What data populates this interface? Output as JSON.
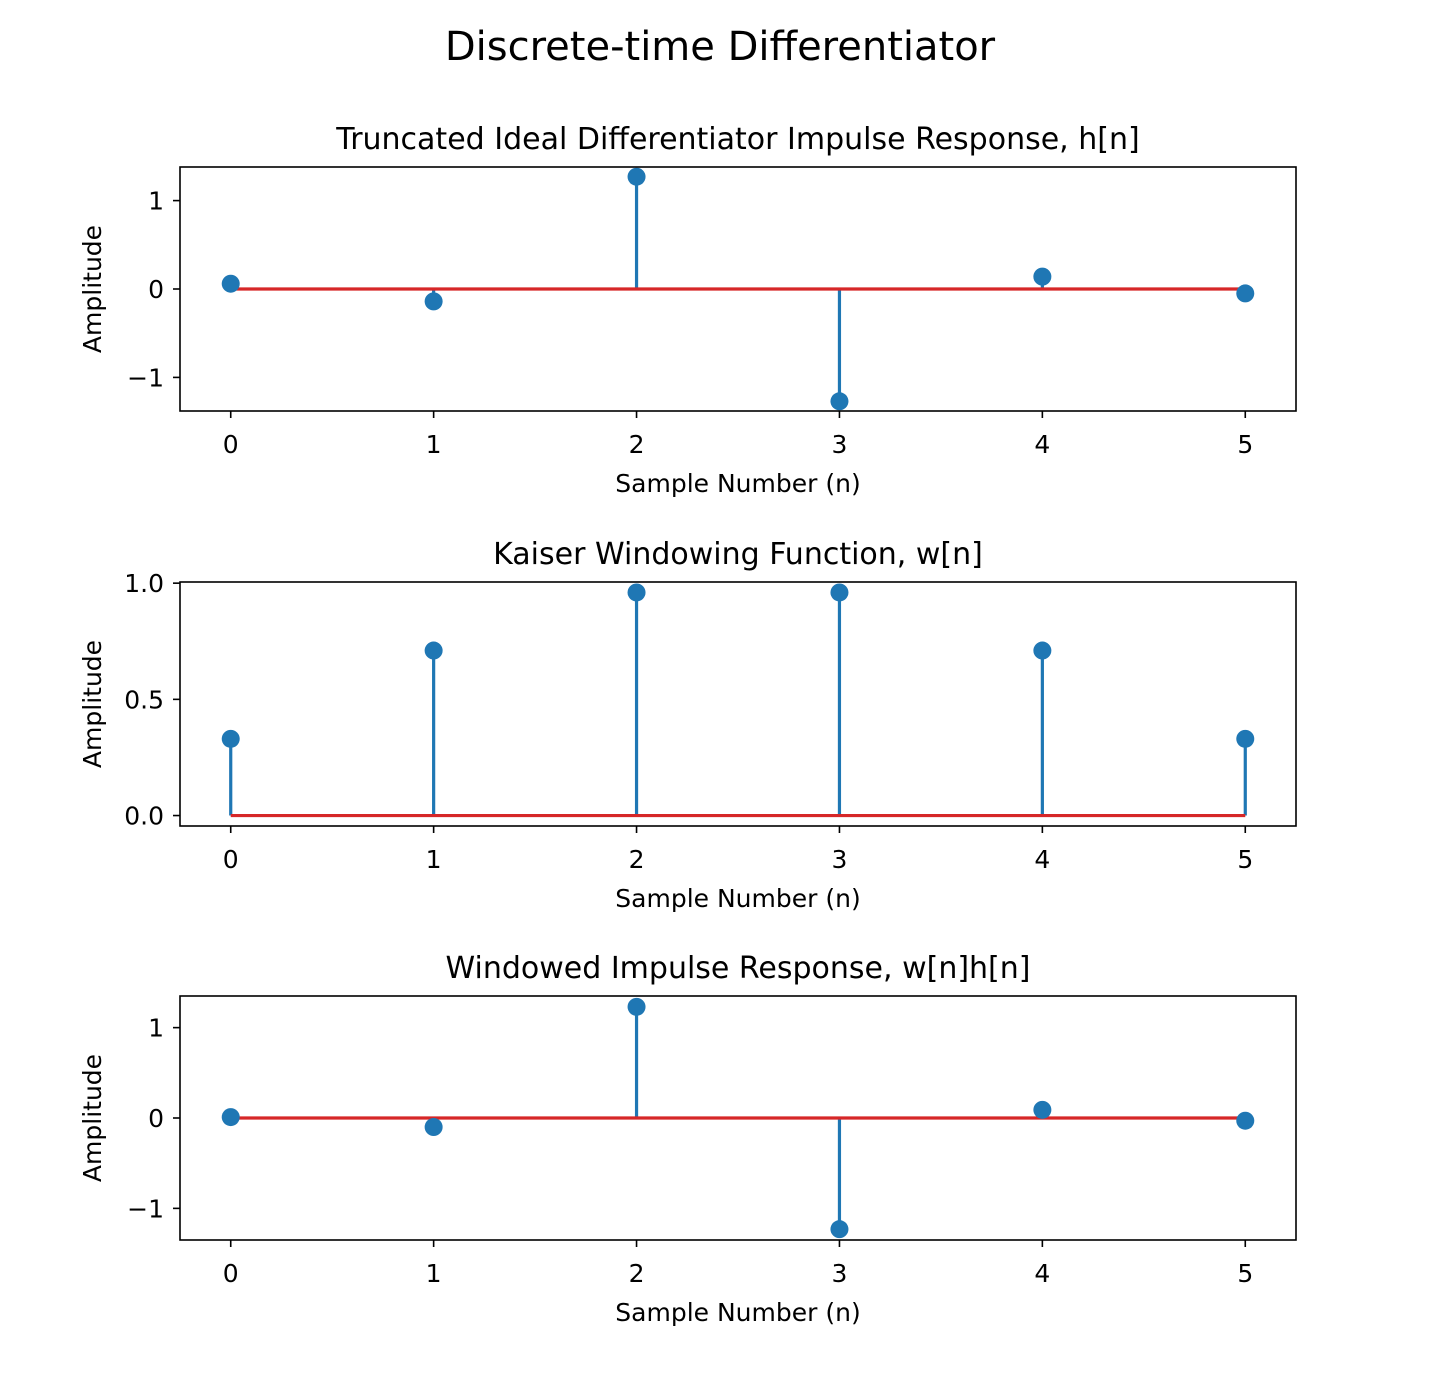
{
  "figure": {
    "suptitle": "Discrete-time Differentiator"
  },
  "colors": {
    "stem": "#1f77b4",
    "baseline": "#d62728",
    "axes": "#000000",
    "background": "#ffffff"
  },
  "chart_data": [
    {
      "type": "stem",
      "title": "Truncated Ideal Differentiator Impulse Response, h[n]",
      "xlabel": "Sample Number (n)",
      "ylabel": "Amplitude",
      "x": [
        0,
        1,
        2,
        3,
        4,
        5
      ],
      "values": [
        0.06,
        -0.14,
        1.27,
        -1.27,
        0.14,
        -0.05
      ],
      "xlim": [
        -0.25,
        5.25
      ],
      "ylim": [
        -1.38,
        1.38
      ],
      "xticks": [
        0,
        1,
        2,
        3,
        4,
        5
      ],
      "xtick_labels": [
        "0",
        "1",
        "2",
        "3",
        "4",
        "5"
      ],
      "yticks": [
        1,
        0,
        -1
      ],
      "ytick_labels": [
        "1",
        "0",
        "−1"
      ],
      "grid": false
    },
    {
      "type": "stem",
      "title": "Kaiser Windowing Function, w[n]",
      "xlabel": "Sample Number (n)",
      "ylabel": "Amplitude",
      "x": [
        0,
        1,
        2,
        3,
        4,
        5
      ],
      "values": [
        0.33,
        0.71,
        0.96,
        0.96,
        0.71,
        0.33
      ],
      "xlim": [
        -0.25,
        5.25
      ],
      "ylim": [
        -0.045,
        1.005
      ],
      "xticks": [
        0,
        1,
        2,
        3,
        4,
        5
      ],
      "xtick_labels": [
        "0",
        "1",
        "2",
        "3",
        "4",
        "5"
      ],
      "yticks": [
        1.0,
        0.5,
        0.0
      ],
      "ytick_labels": [
        "1.0",
        "0.5",
        "0.0"
      ],
      "grid": false
    },
    {
      "type": "stem",
      "title": "Windowed Impulse Response, w[n]h[n]",
      "xlabel": "Sample Number (n)",
      "ylabel": "Amplitude",
      "x": [
        0,
        1,
        2,
        3,
        4,
        5
      ],
      "values": [
        0.01,
        -0.1,
        1.23,
        -1.23,
        0.09,
        -0.03
      ],
      "xlim": [
        -0.25,
        5.25
      ],
      "ylim": [
        -1.35,
        1.35
      ],
      "xticks": [
        0,
        1,
        2,
        3,
        4,
        5
      ],
      "xtick_labels": [
        "0",
        "1",
        "2",
        "3",
        "4",
        "5"
      ],
      "yticks": [
        1,
        0,
        -1
      ],
      "ytick_labels": [
        "1",
        "0",
        "−1"
      ],
      "grid": false
    }
  ]
}
